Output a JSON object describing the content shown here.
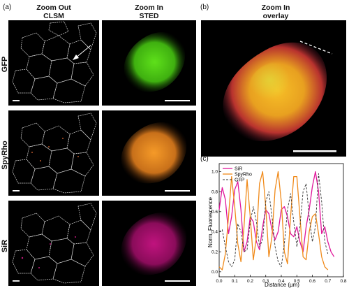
{
  "panels": {
    "a": "(a)",
    "b": "(b)",
    "c": "(c)"
  },
  "headers": {
    "zoom_out": [
      "Zoom Out",
      "CLSM"
    ],
    "zoom_in": [
      "Zoom In",
      "STED"
    ],
    "overlay": [
      "Zoom In",
      "overlay"
    ]
  },
  "rows": [
    "GFP",
    "SpyRho",
    "SiR"
  ],
  "colors": {
    "gfp": "#44c814",
    "spyrho": "#f08a1a",
    "sir": "#e0169a",
    "overlay_core": "#f2b020",
    "outline": "#d8d8d8"
  },
  "chart_data": {
    "type": "line",
    "xlabel": "Distance (µm)",
    "ylabel": "Norm. Fluorescence",
    "xlim": [
      0.0,
      0.8
    ],
    "ylim": [
      -0.05,
      1.08
    ],
    "xticks": [
      "0.0",
      "0.1",
      "0.2",
      "0.3",
      "0.4",
      "0.5",
      "0.6",
      "0.7",
      "0.8"
    ],
    "yticks": [
      "0.0",
      "0.2",
      "0.4",
      "0.6",
      "0.8",
      "1.0"
    ],
    "legend_position": "top-left",
    "series": [
      {
        "name": "SiR",
        "color": "#e0169a",
        "dash": "solid",
        "x": [
          0.0,
          0.02,
          0.04,
          0.06,
          0.08,
          0.1,
          0.12,
          0.14,
          0.16,
          0.18,
          0.2,
          0.22,
          0.24,
          0.26,
          0.28,
          0.3,
          0.32,
          0.34,
          0.36,
          0.38,
          0.4,
          0.42,
          0.44,
          0.46,
          0.48,
          0.5,
          0.52,
          0.54,
          0.56,
          0.58,
          0.6,
          0.62,
          0.64,
          0.66,
          0.68,
          0.7,
          0.72,
          0.74
        ],
        "y": [
          0.62,
          0.84,
          0.72,
          0.38,
          0.55,
          0.82,
          0.9,
          0.62,
          0.2,
          0.3,
          0.55,
          0.5,
          0.3,
          0.22,
          0.45,
          0.62,
          0.58,
          0.42,
          0.32,
          0.4,
          0.62,
          0.65,
          0.55,
          0.38,
          0.35,
          0.45,
          0.3,
          0.2,
          0.45,
          0.62,
          0.85,
          1.0,
          0.8,
          0.38,
          0.45,
          0.3,
          0.2,
          0.15
        ]
      },
      {
        "name": "SpyRho",
        "color": "#f08a1a",
        "dash": "solid",
        "x": [
          0.0,
          0.02,
          0.04,
          0.06,
          0.08,
          0.1,
          0.12,
          0.14,
          0.16,
          0.18,
          0.2,
          0.22,
          0.24,
          0.26,
          0.28,
          0.3,
          0.32,
          0.34,
          0.36,
          0.38,
          0.4,
          0.42,
          0.44,
          0.46,
          0.48,
          0.5,
          0.52,
          0.54,
          0.56,
          0.58,
          0.6,
          0.62,
          0.64,
          0.66,
          0.68,
          0.7
        ],
        "y": [
          0.05,
          0.02,
          0.18,
          0.55,
          0.95,
          0.65,
          0.28,
          0.1,
          0.45,
          0.92,
          0.55,
          0.12,
          0.35,
          0.88,
          1.0,
          0.65,
          0.15,
          0.35,
          0.82,
          1.0,
          0.7,
          0.2,
          0.08,
          0.55,
          0.95,
          0.95,
          0.55,
          0.15,
          0.12,
          0.4,
          0.55,
          0.58,
          0.38,
          0.15,
          0.05,
          0.02
        ]
      },
      {
        "name": "GFP",
        "color": "#333333",
        "dash": "dashed",
        "x": [
          0.0,
          0.02,
          0.04,
          0.06,
          0.08,
          0.1,
          0.12,
          0.14,
          0.16,
          0.18,
          0.2,
          0.22,
          0.24,
          0.26,
          0.28,
          0.3,
          0.32,
          0.34,
          0.36,
          0.38,
          0.4,
          0.42,
          0.44,
          0.46,
          0.48,
          0.5,
          0.52,
          0.54,
          0.56,
          0.58,
          0.6,
          0.62,
          0.64,
          0.66,
          0.68,
          0.7
        ],
        "y": [
          0.4,
          0.42,
          0.25,
          0.1,
          0.05,
          0.12,
          0.48,
          0.4,
          0.2,
          0.22,
          0.5,
          0.65,
          0.5,
          0.25,
          0.32,
          0.7,
          0.8,
          0.55,
          0.25,
          0.1,
          0.05,
          0.28,
          0.62,
          0.78,
          0.5,
          0.25,
          0.45,
          0.8,
          0.88,
          0.55,
          0.3,
          0.45,
          0.98,
          0.7,
          0.3,
          0.18
        ]
      }
    ]
  }
}
